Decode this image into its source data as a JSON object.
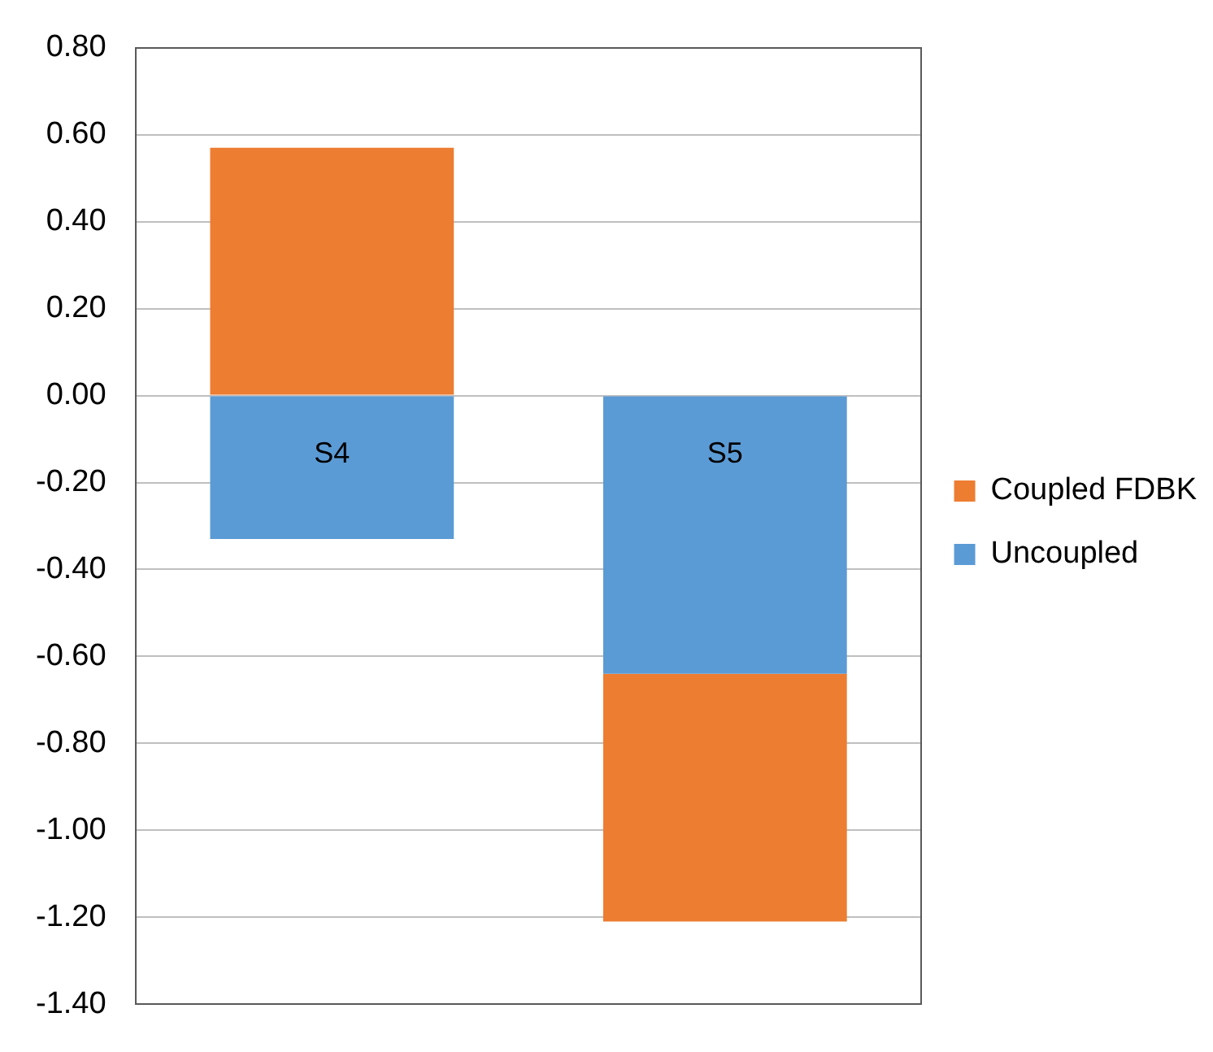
{
  "chart_data": {
    "type": "bar",
    "stacked": true,
    "categories": [
      "S4",
      "S5"
    ],
    "series": [
      {
        "name": "Uncoupled",
        "color": "#5b9bd5",
        "values": [
          -0.33,
          -0.64
        ]
      },
      {
        "name": "Coupled FDBK",
        "color": "#ed7d31",
        "values": [
          0.57,
          -0.57
        ]
      }
    ],
    "ylim": [
      -1.4,
      0.8
    ],
    "yticks": [
      {
        "value": -1.4,
        "label": "-1.40"
      },
      {
        "value": -1.2,
        "label": "-1.20"
      },
      {
        "value": -1.0,
        "label": "-1.00"
      },
      {
        "value": -0.8,
        "label": "-0.80"
      },
      {
        "value": -0.6,
        "label": "-0.60"
      },
      {
        "value": -0.4,
        "label": "-0.40"
      },
      {
        "value": -0.2,
        "label": "-0.20"
      },
      {
        "value": 0,
        "label": "0.00"
      },
      {
        "value": 0.2,
        "label": "0.20"
      },
      {
        "value": 0.4,
        "label": "0.40"
      },
      {
        "value": 0.6,
        "label": "0.60"
      },
      {
        "value": 0.8,
        "label": "0.80"
      }
    ],
    "grid": "y",
    "legend": "right"
  }
}
